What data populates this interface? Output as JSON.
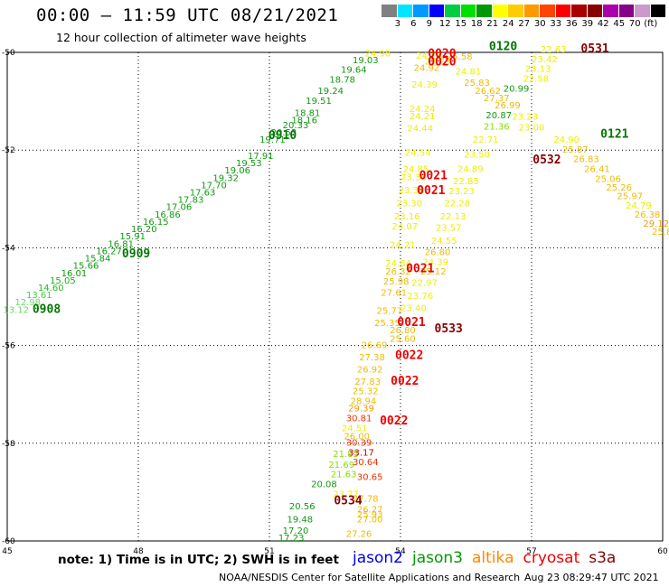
{
  "header": {
    "title": "00:00 – 11:59 UTC 08/21/2021",
    "subtitle": "12 hour collection of altimeter wave heights"
  },
  "legend": {
    "colors": [
      "#808080",
      "#00e5ff",
      "#0099ff",
      "#0000ff",
      "#00cc44",
      "#00e000",
      "#009900",
      "#ffff00",
      "#ffcc00",
      "#ff9900",
      "#ff4400",
      "#ff0000",
      "#aa0000",
      "#880000",
      "#aa00aa",
      "#880088",
      "#cc99cc",
      "#000000"
    ],
    "labels": [
      "3",
      "6",
      "9",
      "12",
      "15",
      "18",
      "21",
      "24",
      "27",
      "30",
      "33",
      "36",
      "39",
      "42",
      "45",
      "70",
      "(ft)"
    ]
  },
  "map": {
    "x_labels": [
      "45",
      "48",
      "51",
      "54",
      "57",
      "60"
    ],
    "y_labels": [
      "-50",
      "-52",
      "-54",
      "-56",
      "-58",
      "-60"
    ]
  },
  "track_labels": [
    {
      "text": "0910",
      "lon": 51.3,
      "lat": -51.77,
      "color": "#007700"
    },
    {
      "text": "0909",
      "lon": 47.95,
      "lat": -54.2,
      "color": "#007700"
    },
    {
      "text": "0908",
      "lon": 45.9,
      "lat": -55.33,
      "color": "#007700"
    },
    {
      "text": "0120",
      "lon": 56.35,
      "lat": -49.95,
      "color": "#007700"
    },
    {
      "text": "0121",
      "lon": 58.9,
      "lat": -51.75,
      "color": "#007700"
    },
    {
      "text": "0020",
      "lon": 54.95,
      "lat": -50.1,
      "color": "#ee0000"
    },
    {
      "text": "0020",
      "lon": 54.95,
      "lat": -50.27,
      "color": "#ee0000"
    },
    {
      "text": "0021",
      "lon": 54.75,
      "lat": -52.6,
      "color": "#ee0000"
    },
    {
      "text": "0021",
      "lon": 54.7,
      "lat": -52.9,
      "color": "#ee0000"
    },
    {
      "text": "0021",
      "lon": 54.45,
      "lat": -54.5,
      "color": "#ee0000"
    },
    {
      "text": "0021",
      "lon": 54.25,
      "lat": -55.6,
      "color": "#ee0000"
    },
    {
      "text": "0022",
      "lon": 54.2,
      "lat": -56.28,
      "color": "#ee0000"
    },
    {
      "text": "0022",
      "lon": 54.1,
      "lat": -56.8,
      "color": "#ee0000"
    },
    {
      "text": "0022",
      "lon": 53.85,
      "lat": -57.62,
      "color": "#ee0000"
    },
    {
      "text": "0531",
      "lon": 58.45,
      "lat": -50.0,
      "color": "#880000"
    },
    {
      "text": "0532",
      "lon": 57.35,
      "lat": -52.27,
      "color": "#880000"
    },
    {
      "text": "0533",
      "lon": 55.1,
      "lat": -55.73,
      "color": "#880000"
    },
    {
      "text": "0534",
      "lon": 52.8,
      "lat": -59.25,
      "color": "#880000"
    }
  ],
  "values": [
    {
      "text": "13.12",
      "lon": 45.2,
      "lat": -55.33,
      "color": "#66dd66"
    },
    {
      "text": "12.98",
      "lon": 45.47,
      "lat": -55.18,
      "color": "#66dd66"
    },
    {
      "text": "13.61",
      "lon": 45.73,
      "lat": -55.03,
      "color": "#44cc44"
    },
    {
      "text": "14.60",
      "lon": 46.0,
      "lat": -54.88,
      "color": "#22bb22"
    },
    {
      "text": "15.05",
      "lon": 46.27,
      "lat": -54.73,
      "color": "#22aa22"
    },
    {
      "text": "16.01",
      "lon": 46.53,
      "lat": -54.58,
      "color": "#119911"
    },
    {
      "text": "15.66",
      "lon": 46.8,
      "lat": -54.43,
      "color": "#119911"
    },
    {
      "text": "15.84",
      "lon": 47.07,
      "lat": -54.28,
      "color": "#119911"
    },
    {
      "text": "16.27",
      "lon": 47.33,
      "lat": -54.13,
      "color": "#119911"
    },
    {
      "text": "16.81",
      "lon": 47.6,
      "lat": -53.98,
      "color": "#119911"
    },
    {
      "text": "15.91",
      "lon": 47.87,
      "lat": -53.83,
      "color": "#119911"
    },
    {
      "text": "16.20",
      "lon": 48.13,
      "lat": -53.68,
      "color": "#119911"
    },
    {
      "text": "16.15",
      "lon": 48.4,
      "lat": -53.53,
      "color": "#119911"
    },
    {
      "text": "16.86",
      "lon": 48.67,
      "lat": -53.38,
      "color": "#119911"
    },
    {
      "text": "17.06",
      "lon": 48.93,
      "lat": -53.23,
      "color": "#119911"
    },
    {
      "text": "17.83",
      "lon": 49.2,
      "lat": -53.08,
      "color": "#119911"
    },
    {
      "text": "17.63",
      "lon": 49.47,
      "lat": -52.93,
      "color": "#119911"
    },
    {
      "text": "17.70",
      "lon": 49.73,
      "lat": -52.78,
      "color": "#119911"
    },
    {
      "text": "19.32",
      "lon": 50.0,
      "lat": -52.63,
      "color": "#119911"
    },
    {
      "text": "19.06",
      "lon": 50.27,
      "lat": -52.48,
      "color": "#119911"
    },
    {
      "text": "19.53",
      "lon": 50.53,
      "lat": -52.33,
      "color": "#119911"
    },
    {
      "text": "17.91",
      "lon": 50.8,
      "lat": -52.18,
      "color": "#119911"
    },
    {
      "text": "19.71",
      "lon": 51.07,
      "lat": -51.85,
      "color": "#119911"
    },
    {
      "text": "20.53",
      "lon": 51.33,
      "lat": -51.7,
      "color": "#119911"
    },
    {
      "text": "20.33",
      "lon": 51.6,
      "lat": -51.55,
      "color": "#119911"
    },
    {
      "text": "18.81",
      "lon": 51.87,
      "lat": -51.3,
      "color": "#119911"
    },
    {
      "text": "18.16",
      "lon": 51.8,
      "lat": -51.45,
      "color": "#119911"
    },
    {
      "text": "19.51",
      "lon": 52.13,
      "lat": -51.05,
      "color": "#119911"
    },
    {
      "text": "19.24",
      "lon": 52.4,
      "lat": -50.85,
      "color": "#119911"
    },
    {
      "text": "18.78",
      "lon": 52.67,
      "lat": -50.62,
      "color": "#119911"
    },
    {
      "text": "19.64",
      "lon": 52.93,
      "lat": -50.42,
      "color": "#119911"
    },
    {
      "text": "19.03",
      "lon": 53.2,
      "lat": -50.22,
      "color": "#119911"
    },
    {
      "text": "24.98",
      "lon": 53.48,
      "lat": -50.08,
      "color": "#eeee00"
    },
    {
      "text": "24.28",
      "lon": 54.65,
      "lat": -50.13,
      "color": "#eeee00"
    },
    {
      "text": "24.92",
      "lon": 54.6,
      "lat": -50.38,
      "color": "#eebb00"
    },
    {
      "text": "24.39",
      "lon": 54.55,
      "lat": -50.72,
      "color": "#eeee00"
    },
    {
      "text": "24.24",
      "lon": 54.5,
      "lat": -51.22,
      "color": "#eeee00"
    },
    {
      "text": "24.21",
      "lon": 54.5,
      "lat": -51.37,
      "color": "#eeee00"
    },
    {
      "text": "24.44",
      "lon": 54.45,
      "lat": -51.62,
      "color": "#eeee00"
    },
    {
      "text": "24.54",
      "lon": 54.4,
      "lat": -52.12,
      "color": "#eeee00"
    },
    {
      "text": "24.85",
      "lon": 54.35,
      "lat": -52.45,
      "color": "#eeee00"
    },
    {
      "text": "23.33",
      "lon": 54.3,
      "lat": -52.62,
      "color": "#eeee00"
    },
    {
      "text": "23.38",
      "lon": 54.25,
      "lat": -52.88,
      "color": "#eeee00"
    },
    {
      "text": "23.30",
      "lon": 54.2,
      "lat": -53.15,
      "color": "#eeee00"
    },
    {
      "text": "23.16",
      "lon": 54.15,
      "lat": -53.42,
      "color": "#eeee00"
    },
    {
      "text": "24.07",
      "lon": 54.1,
      "lat": -53.62,
      "color": "#eeee00"
    },
    {
      "text": "24.21",
      "lon": 54.05,
      "lat": -54.0,
      "color": "#eeee00"
    },
    {
      "text": "24.64",
      "lon": 53.95,
      "lat": -54.38,
      "color": "#eeee00"
    },
    {
      "text": "26.32",
      "lon": 53.95,
      "lat": -54.55,
      "color": "#eebb00"
    },
    {
      "text": "25.98",
      "lon": 53.9,
      "lat": -54.75,
      "color": "#eebb00"
    },
    {
      "text": "27.61",
      "lon": 53.85,
      "lat": -54.98,
      "color": "#eebb00"
    },
    {
      "text": "25.77",
      "lon": 53.75,
      "lat": -55.35,
      "color": "#eebb00"
    },
    {
      "text": "25.35",
      "lon": 53.7,
      "lat": -55.6,
      "color": "#eebb00"
    },
    {
      "text": "26.80",
      "lon": 54.05,
      "lat": -55.75,
      "color": "#eebb00"
    },
    {
      "text": "25.60",
      "lon": 54.05,
      "lat": -55.92,
      "color": "#eebb00"
    },
    {
      "text": "26.69",
      "lon": 53.4,
      "lat": -56.05,
      "color": "#eebb00"
    },
    {
      "text": "27.38",
      "lon": 53.35,
      "lat": -56.3,
      "color": "#eebb00"
    },
    {
      "text": "26.92",
      "lon": 53.3,
      "lat": -56.55,
      "color": "#eebb00"
    },
    {
      "text": "27.83",
      "lon": 53.25,
      "lat": -56.8,
      "color": "#eebb00"
    },
    {
      "text": "25.32",
      "lon": 53.2,
      "lat": -57.0,
      "color": "#eebb00"
    },
    {
      "text": "28.94",
      "lon": 53.15,
      "lat": -57.2,
      "color": "#eebb00"
    },
    {
      "text": "29.39",
      "lon": 53.1,
      "lat": -57.35,
      "color": "#ee9900"
    },
    {
      "text": "30.81",
      "lon": 53.05,
      "lat": -57.55,
      "color": "#ee3300"
    },
    {
      "text": "24.51",
      "lon": 52.95,
      "lat": -57.75,
      "color": "#eeee00"
    },
    {
      "text": "26.00",
      "lon": 53.0,
      "lat": -57.92,
      "color": "#eebb00"
    },
    {
      "text": "30.39",
      "lon": 53.05,
      "lat": -58.05,
      "color": "#ee3300"
    },
    {
      "text": "21.85",
      "lon": 52.75,
      "lat": -58.28,
      "color": "#88dd00"
    },
    {
      "text": "33.17",
      "lon": 53.1,
      "lat": -58.25,
      "color": "#cc0000"
    },
    {
      "text": "21.69",
      "lon": 52.65,
      "lat": -58.5,
      "color": "#88dd00"
    },
    {
      "text": "30.64",
      "lon": 53.2,
      "lat": -58.45,
      "color": "#ee3300"
    },
    {
      "text": "30.65",
      "lon": 53.3,
      "lat": -58.75,
      "color": "#ee3300"
    },
    {
      "text": "21.63",
      "lon": 52.7,
      "lat": -58.7,
      "color": "#88dd00"
    },
    {
      "text": "20.08",
      "lon": 52.25,
      "lat": -58.9,
      "color": "#119911"
    },
    {
      "text": "23.77",
      "lon": 52.75,
      "lat": -59.1,
      "color": "#eeee00"
    },
    {
      "text": "27.78",
      "lon": 53.2,
      "lat": -59.2,
      "color": "#eebb00"
    },
    {
      "text": "20.56",
      "lon": 51.75,
      "lat": -59.35,
      "color": "#119911"
    },
    {
      "text": "26.27",
      "lon": 53.3,
      "lat": -59.42,
      "color": "#eebb00"
    },
    {
      "text": "25.93",
      "lon": 53.3,
      "lat": -59.52,
      "color": "#eebb00"
    },
    {
      "text": "27.00",
      "lon": 53.3,
      "lat": -59.62,
      "color": "#eebb00"
    },
    {
      "text": "19.48",
      "lon": 51.7,
      "lat": -59.62,
      "color": "#119911"
    },
    {
      "text": "17.20",
      "lon": 51.6,
      "lat": -59.85,
      "color": "#119911"
    },
    {
      "text": "27.26",
      "lon": 53.05,
      "lat": -59.92,
      "color": "#eebb00"
    },
    {
      "text": "17.23",
      "lon": 51.5,
      "lat": -60.0,
      "color": "#119911"
    },
    {
      "text": "23.23",
      "lon": 54.85,
      "lat": -50.25,
      "color": "#eeee00"
    },
    {
      "text": "22.63",
      "lon": 57.5,
      "lat": -50.0,
      "color": "#eeee00"
    },
    {
      "text": "23.42",
      "lon": 57.3,
      "lat": -50.2,
      "color": "#eeee00"
    },
    {
      "text": "23.13",
      "lon": 57.15,
      "lat": -50.4,
      "color": "#eeee00"
    },
    {
      "text": "22.58",
      "lon": 57.1,
      "lat": -50.6,
      "color": "#eeee00"
    },
    {
      "text": "25.58",
      "lon": 55.35,
      "lat": -50.15,
      "color": "#eebb00"
    },
    {
      "text": "24.81",
      "lon": 55.55,
      "lat": -50.45,
      "color": "#eeee00"
    },
    {
      "text": "25.83",
      "lon": 55.75,
      "lat": -50.68,
      "color": "#eebb00"
    },
    {
      "text": "26.62",
      "lon": 56.0,
      "lat": -50.85,
      "color": "#eebb00"
    },
    {
      "text": "20.99",
      "lon": 56.65,
      "lat": -50.8,
      "color": "#119911"
    },
    {
      "text": "27.37",
      "lon": 56.2,
      "lat": -51.0,
      "color": "#eebb00"
    },
    {
      "text": "26.99",
      "lon": 56.45,
      "lat": -51.15,
      "color": "#eebb00"
    },
    {
      "text": "20.87",
      "lon": 56.25,
      "lat": -51.35,
      "color": "#119911"
    },
    {
      "text": "21.36",
      "lon": 56.2,
      "lat": -51.58,
      "color": "#88dd00"
    },
    {
      "text": "23.23",
      "lon": 56.85,
      "lat": -51.38,
      "color": "#eeee00"
    },
    {
      "text": "23.00",
      "lon": 57.0,
      "lat": -51.6,
      "color": "#eeee00"
    },
    {
      "text": "22.71",
      "lon": 55.95,
      "lat": -51.85,
      "color": "#eeee00"
    },
    {
      "text": "23.50",
      "lon": 55.75,
      "lat": -52.15,
      "color": "#eeee00"
    },
    {
      "text": "24.90",
      "lon": 57.8,
      "lat": -51.85,
      "color": "#eeee00"
    },
    {
      "text": "25.87",
      "lon": 58.0,
      "lat": -52.05,
      "color": "#eebb00"
    },
    {
      "text": "26.83",
      "lon": 58.25,
      "lat": -52.25,
      "color": "#eebb00"
    },
    {
      "text": "26.41",
      "lon": 58.5,
      "lat": -52.45,
      "color": "#eebb00"
    },
    {
      "text": "25.06",
      "lon": 58.75,
      "lat": -52.65,
      "color": "#eebb00"
    },
    {
      "text": "25.26",
      "lon": 59.0,
      "lat": -52.83,
      "color": "#eebb00"
    },
    {
      "text": "25.97",
      "lon": 59.25,
      "lat": -53.0,
      "color": "#eebb00"
    },
    {
      "text": "24.79",
      "lon": 59.45,
      "lat": -53.2,
      "color": "#eeee00"
    },
    {
      "text": "26.38",
      "lon": 59.65,
      "lat": -53.38,
      "color": "#eebb00"
    },
    {
      "text": "29.12",
      "lon": 59.85,
      "lat": -53.57,
      "color": "#ee9900"
    },
    {
      "text": "25.88",
      "lon": 60.05,
      "lat": -53.73,
      "color": "#eebb00"
    },
    {
      "text": "24.89",
      "lon": 55.6,
      "lat": -52.45,
      "color": "#eeee00"
    },
    {
      "text": "22.85",
      "lon": 55.5,
      "lat": -52.7,
      "color": "#eeee00"
    },
    {
      "text": "23.23",
      "lon": 55.4,
      "lat": -52.9,
      "color": "#eeee00"
    },
    {
      "text": "22.28",
      "lon": 55.3,
      "lat": -53.15,
      "color": "#eeee00"
    },
    {
      "text": "22.13",
      "lon": 55.2,
      "lat": -53.42,
      "color": "#eeee00"
    },
    {
      "text": "23.57",
      "lon": 55.1,
      "lat": -53.65,
      "color": "#eeee00"
    },
    {
      "text": "24.55",
      "lon": 55.0,
      "lat": -53.92,
      "color": "#eeee00"
    },
    {
      "text": "26.80",
      "lon": 54.85,
      "lat": -54.15,
      "color": "#eebb00"
    },
    {
      "text": "24.39",
      "lon": 54.8,
      "lat": -54.35,
      "color": "#eeee00"
    },
    {
      "text": "25.12",
      "lon": 54.75,
      "lat": -54.55,
      "color": "#eebb00"
    },
    {
      "text": "22.97",
      "lon": 54.55,
      "lat": -54.78,
      "color": "#eeee00"
    },
    {
      "text": "23.76",
      "lon": 54.45,
      "lat": -55.05,
      "color": "#eeee00"
    },
    {
      "text": "23.40",
      "lon": 54.3,
      "lat": -55.3,
      "color": "#eeee00"
    }
  ],
  "footer": {
    "note": "note:  1) Time is in UTC;  2) SWH is in feet",
    "satellites": [
      {
        "name": "jason2",
        "color": "#0000ee"
      },
      {
        "name": "jason3",
        "color": "#009900"
      },
      {
        "name": "altika",
        "color": "#ff8800"
      },
      {
        "name": "cryosat",
        "color": "#ee0000"
      },
      {
        "name": "s3a",
        "color": "#880000"
      }
    ],
    "credit": "NOAA/NESDIS Center for Satellite Applications and Research",
    "timestamp": "Aug 23 08:29:47 UTC 2021"
  }
}
